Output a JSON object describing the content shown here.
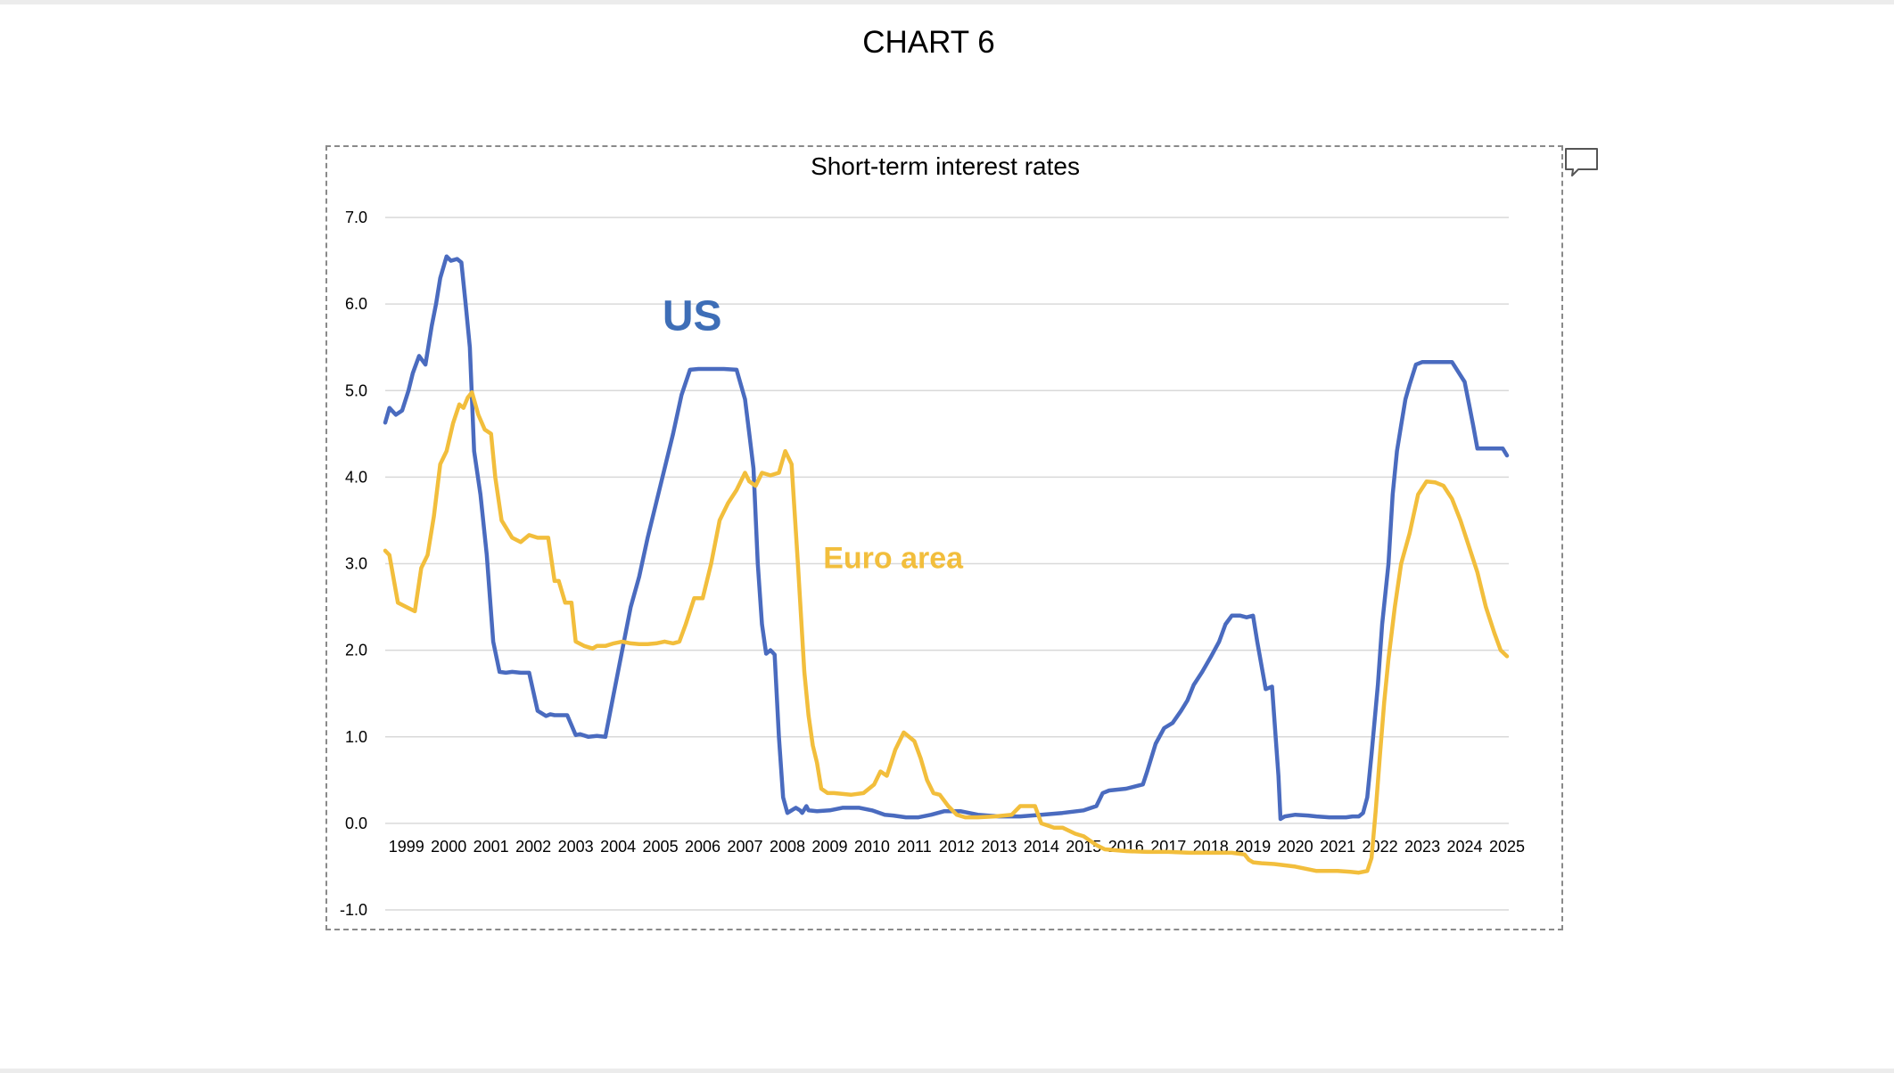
{
  "page": {
    "title": "CHART 6"
  },
  "chart_data": {
    "type": "line",
    "title": "Short-term interest rates",
    "xlabel": "",
    "ylabel": "",
    "ylim": [
      -1.0,
      7.0
    ],
    "yticks": [
      "7.0",
      "6.0",
      "5.0",
      "4.0",
      "3.0",
      "2.0",
      "1.0",
      "0.0",
      "-1.0"
    ],
    "xlim": [
      1999.0,
      2025.5
    ],
    "xticks": [
      "1999",
      "2000",
      "2001",
      "2002",
      "2003",
      "2004",
      "2005",
      "2006",
      "2007",
      "2008",
      "2009",
      "2010",
      "2011",
      "2012",
      "2013",
      "2014",
      "2015",
      "2016",
      "2017",
      "2018",
      "2019",
      "2020",
      "2021",
      "2022",
      "2023",
      "2024",
      "2025"
    ],
    "grid": true,
    "series": [
      {
        "name": "US",
        "label": "US",
        "color": "#4A6BBF",
        "x": [
          1999.0,
          1999.1,
          1999.25,
          1999.4,
          1999.55,
          1999.65,
          1999.8,
          1999.95,
          2000.1,
          2000.2,
          2000.3,
          2000.45,
          2000.55,
          2000.7,
          2000.8,
          2000.9,
          2001.0,
          2001.1,
          2001.25,
          2001.4,
          2001.55,
          2001.7,
          2001.85,
          2002.0,
          2002.2,
          2002.4,
          2002.6,
          2002.8,
          2002.9,
          2003.0,
          2003.3,
          2003.5,
          2003.6,
          2003.8,
          2004.0,
          2004.2,
          2004.4,
          2004.6,
          2004.8,
          2005.0,
          2005.2,
          2005.4,
          2005.6,
          2005.8,
          2006.0,
          2006.2,
          2006.4,
          2006.6,
          2006.8,
          2007.0,
          2007.3,
          2007.5,
          2007.6,
          2007.7,
          2007.8,
          2007.9,
          2008.0,
          2008.1,
          2008.2,
          2008.3,
          2008.4,
          2008.5,
          2008.7,
          2008.8,
          2008.85,
          2008.95,
          2009.0,
          2009.2,
          2009.5,
          2009.8,
          2010.0,
          2010.2,
          2010.5,
          2010.8,
          2011.0,
          2011.3,
          2011.6,
          2011.9,
          2012.2,
          2012.6,
          2013.0,
          2013.5,
          2014.0,
          2014.5,
          2015.0,
          2015.5,
          2015.8,
          2015.95,
          2016.1,
          2016.5,
          2016.9,
          2017.0,
          2017.2,
          2017.4,
          2017.6,
          2017.8,
          2017.95,
          2018.1,
          2018.3,
          2018.5,
          2018.7,
          2018.85,
          2019.0,
          2019.2,
          2019.35,
          2019.5,
          2019.6,
          2019.8,
          2019.95,
          2020.1,
          2020.15,
          2020.25,
          2020.5,
          2020.8,
          2021.0,
          2021.3,
          2021.5,
          2021.7,
          2021.85,
          2022.0,
          2022.1,
          2022.2,
          2022.3,
          2022.45,
          2022.55,
          2022.7,
          2022.8,
          2022.9,
          2023.0,
          2023.1,
          2023.2,
          2023.35,
          2023.5,
          2023.6,
          2023.8,
          2024.0,
          2024.2,
          2024.5,
          2024.6,
          2024.7,
          2024.8,
          2024.9,
          2025.0,
          2025.2,
          2025.4,
          2025.5
        ],
        "values": [
          4.63,
          4.8,
          4.72,
          4.77,
          5.0,
          5.2,
          5.4,
          5.3,
          5.75,
          6.0,
          6.3,
          6.55,
          6.5,
          6.52,
          6.48,
          6.0,
          5.5,
          4.3,
          3.8,
          3.1,
          2.1,
          1.75,
          1.74,
          1.75,
          1.74,
          1.74,
          1.3,
          1.24,
          1.26,
          1.25,
          1.25,
          1.02,
          1.03,
          1.0,
          1.01,
          1.0,
          1.5,
          2.0,
          2.5,
          2.85,
          3.3,
          3.7,
          4.1,
          4.5,
          4.95,
          5.24,
          5.25,
          5.25,
          5.25,
          5.25,
          5.24,
          4.9,
          4.5,
          4.1,
          3.0,
          2.3,
          1.96,
          2.0,
          1.95,
          1.0,
          0.3,
          0.12,
          0.18,
          0.15,
          0.12,
          0.2,
          0.15,
          0.14,
          0.15,
          0.18,
          0.18,
          0.18,
          0.15,
          0.1,
          0.09,
          0.07,
          0.07,
          0.1,
          0.14,
          0.14,
          0.1,
          0.08,
          0.08,
          0.1,
          0.12,
          0.15,
          0.2,
          0.35,
          0.38,
          0.4,
          0.45,
          0.6,
          0.92,
          1.1,
          1.16,
          1.3,
          1.42,
          1.6,
          1.75,
          1.92,
          2.1,
          2.3,
          2.4,
          2.4,
          2.38,
          2.4,
          2.1,
          1.55,
          1.58,
          0.55,
          0.05,
          0.08,
          0.1,
          0.09,
          0.08,
          0.07,
          0.07,
          0.07,
          0.08,
          0.08,
          0.12,
          0.3,
          0.8,
          1.6,
          2.3,
          3.0,
          3.8,
          4.3,
          4.6,
          4.9,
          5.07,
          5.3,
          5.33,
          5.33,
          5.33,
          5.33,
          5.33,
          5.1,
          4.85,
          4.6,
          4.33,
          4.33,
          4.33,
          4.33,
          4.33,
          4.25
        ]
      },
      {
        "name": "Euro area",
        "label": "Euro area",
        "color": "#F2BE3C",
        "x": [
          1999.0,
          1999.1,
          1999.3,
          1999.5,
          1999.7,
          1999.85,
          2000.0,
          2000.15,
          2000.3,
          2000.45,
          2000.6,
          2000.75,
          2000.85,
          2000.95,
          2001.05,
          2001.2,
          2001.35,
          2001.5,
          2001.6,
          2001.75,
          2002.0,
          2002.2,
          2002.4,
          2002.6,
          2002.85,
          2003.0,
          2003.1,
          2003.25,
          2003.4,
          2003.5,
          2003.7,
          2003.9,
          2004.0,
          2004.2,
          2004.4,
          2004.6,
          2004.8,
          2005.0,
          2005.2,
          2005.4,
          2005.6,
          2005.8,
          2005.95,
          2006.1,
          2006.3,
          2006.5,
          2006.7,
          2006.9,
          2007.1,
          2007.3,
          2007.5,
          2007.6,
          2007.75,
          2007.9,
          2008.1,
          2008.3,
          2008.45,
          2008.6,
          2008.75,
          2008.9,
          2009.0,
          2009.1,
          2009.2,
          2009.3,
          2009.45,
          2009.6,
          2010.0,
          2010.3,
          2010.55,
          2010.7,
          2010.85,
          2010.95,
          2011.05,
          2011.25,
          2011.5,
          2011.65,
          2011.8,
          2011.95,
          2012.1,
          2012.3,
          2012.5,
          2012.7,
          2013.0,
          2013.4,
          2013.8,
          2014.0,
          2014.2,
          2014.35,
          2014.5,
          2014.8,
          2015.0,
          2015.3,
          2015.5,
          2015.65,
          2015.8,
          2016.0,
          2016.5,
          2017.0,
          2017.5,
          2018.0,
          2018.5,
          2019.0,
          2019.3,
          2019.4,
          2019.5,
          2019.7,
          2020.0,
          2020.5,
          2021.0,
          2021.5,
          2021.8,
          2022.0,
          2022.2,
          2022.3,
          2022.4,
          2022.5,
          2022.6,
          2022.7,
          2022.85,
          2023.0,
          2023.2,
          2023.4,
          2023.6,
          2023.8,
          2024.0,
          2024.2,
          2024.4,
          2024.6,
          2024.8,
          2025.0,
          2025.2,
          2025.35,
          2025.5
        ],
        "values": [
          3.15,
          3.1,
          2.55,
          2.5,
          2.45,
          2.95,
          3.1,
          3.55,
          4.15,
          4.3,
          4.62,
          4.84,
          4.8,
          4.92,
          4.98,
          4.72,
          4.55,
          4.5,
          4.0,
          3.5,
          3.3,
          3.25,
          3.33,
          3.3,
          3.3,
          2.8,
          2.8,
          2.55,
          2.55,
          2.1,
          2.05,
          2.02,
          2.05,
          2.05,
          2.08,
          2.1,
          2.08,
          2.07,
          2.07,
          2.08,
          2.1,
          2.08,
          2.1,
          2.3,
          2.6,
          2.6,
          3.0,
          3.5,
          3.7,
          3.85,
          4.05,
          3.95,
          3.9,
          4.05,
          4.02,
          4.05,
          4.3,
          4.15,
          3.0,
          1.75,
          1.25,
          0.9,
          0.7,
          0.4,
          0.35,
          0.35,
          0.33,
          0.35,
          0.45,
          0.6,
          0.55,
          0.7,
          0.85,
          1.05,
          0.95,
          0.75,
          0.5,
          0.35,
          0.33,
          0.2,
          0.1,
          0.07,
          0.07,
          0.08,
          0.1,
          0.2,
          0.2,
          0.2,
          0.0,
          -0.05,
          -0.05,
          -0.12,
          -0.15,
          -0.2,
          -0.25,
          -0.3,
          -0.32,
          -0.33,
          -0.33,
          -0.34,
          -0.34,
          -0.34,
          -0.36,
          -0.42,
          -0.45,
          -0.46,
          -0.47,
          -0.5,
          -0.55,
          -0.55,
          -0.56,
          -0.57,
          -0.55,
          -0.4,
          0.15,
          0.8,
          1.4,
          1.9,
          2.5,
          3.0,
          3.35,
          3.8,
          3.95,
          3.94,
          3.9,
          3.75,
          3.5,
          3.2,
          2.9,
          2.5,
          2.2,
          2.0,
          1.93
        ]
      }
    ],
    "annotations": [
      {
        "text": "US",
        "series": "US",
        "color": "#3E6EB7"
      },
      {
        "text": "Euro area",
        "series": "Euro area",
        "color": "#F2BE3C"
      }
    ]
  }
}
